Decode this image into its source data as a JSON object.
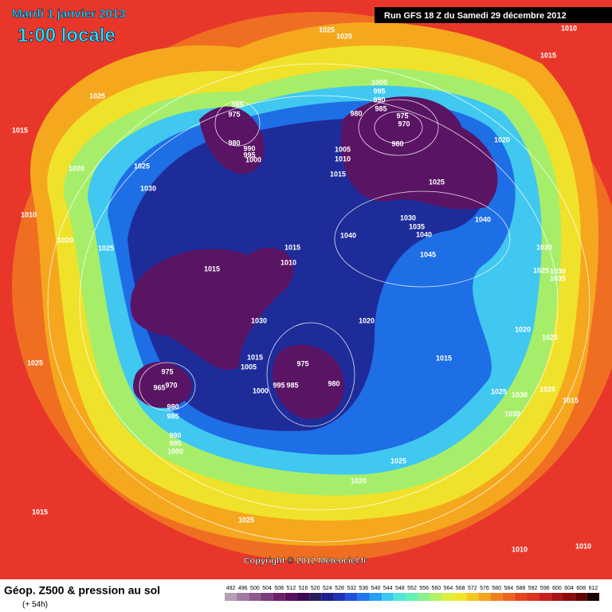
{
  "header": {
    "date": "Mardi 1 janvier 2013",
    "time": "1:00 locale",
    "run": "Run GFS 18 Z du Samedi 29 décembre 2012"
  },
  "pressure_labels": [
    1025,
    1020,
    1010,
    1015,
    1025,
    1015,
    1000,
    995,
    990,
    985,
    980,
    975,
    970,
    980,
    985,
    975,
    980,
    990,
    995,
    1000,
    1005,
    1010,
    1015,
    1020,
    1025,
    1025,
    1020,
    1030,
    1010,
    1030,
    1035,
    1040,
    1040,
    1040,
    1045,
    1020,
    1025,
    1015,
    1010,
    1015,
    1030,
    1025,
    1030,
    1035,
    1030,
    1020,
    1020,
    1025,
    1015,
    1005,
    975,
    1015,
    1025,
    975,
    970,
    965,
    980,
    985,
    995,
    985,
    1000,
    980,
    1025,
    1030,
    1020,
    1015,
    1030,
    990,
    995,
    1000,
    1025,
    1020,
    1015,
    1025,
    1010,
    1010
  ],
  "copyright": "Copyright © 2012 Meteociel.fr",
  "footer": {
    "title": "Géop. Z500 & pression au sol",
    "lead": "(+ 54h)"
  },
  "legend": {
    "values": [
      492,
      496,
      500,
      504,
      508,
      512,
      516,
      520,
      524,
      528,
      532,
      536,
      540,
      544,
      548,
      552,
      556,
      560,
      564,
      568,
      572,
      576,
      580,
      584,
      588,
      592,
      596,
      600,
      604,
      608,
      612
    ],
    "colors": [
      "#b4a0b4",
      "#a07aa0",
      "#8c5a8c",
      "#7a3c7a",
      "#6a206a",
      "#5a1060",
      "#3c0a50",
      "#281e5a",
      "#1e1e8c",
      "#1e32b4",
      "#1e50dc",
      "#1e78f0",
      "#28a0f5",
      "#3cc8f5",
      "#50e6dc",
      "#64f0b4",
      "#8cf08c",
      "#b4f064",
      "#dcf03c",
      "#f0e628",
      "#f5c81e",
      "#f5a51e",
      "#f0821e",
      "#eb641e",
      "#e6461e",
      "#dc321e",
      "#c81e1e",
      "#aa1414",
      "#8c0a0a",
      "#640505",
      "#1e0000"
    ]
  }
}
